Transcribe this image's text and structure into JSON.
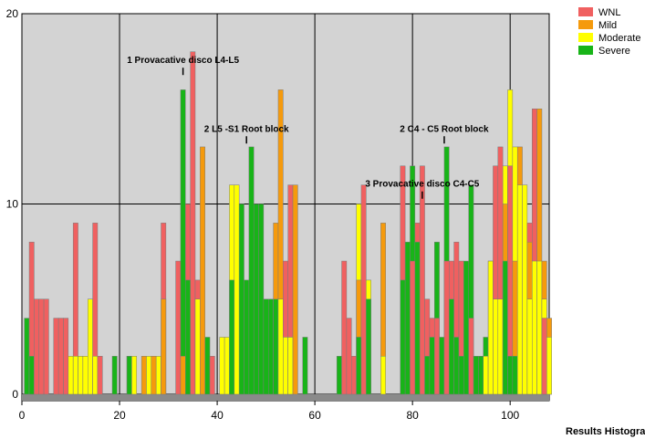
{
  "chart_data": {
    "type": "bar",
    "title": "",
    "xlabel": "",
    "ylabel": "",
    "footer_label": "Results Histogram",
    "xlim": [
      0,
      108
    ],
    "ylim": [
      0,
      20
    ],
    "x_ticks": [
      0,
      20,
      40,
      60,
      80,
      100
    ],
    "y_ticks": [
      0,
      10,
      20
    ],
    "grid": true,
    "legend_position": "top-right",
    "series": [
      {
        "name": "WNL",
        "color": "#f06060",
        "points": [
          [
            2,
            8
          ],
          [
            3,
            5
          ],
          [
            4,
            5
          ],
          [
            5,
            5
          ],
          [
            7,
            4
          ],
          [
            8,
            4
          ],
          [
            9,
            4
          ],
          [
            11,
            9
          ],
          [
            12,
            2
          ],
          [
            13,
            2
          ],
          [
            15,
            9
          ],
          [
            16,
            2
          ],
          [
            29,
            9
          ],
          [
            32,
            7
          ],
          [
            34,
            10
          ],
          [
            35,
            18
          ],
          [
            36,
            6
          ],
          [
            39,
            2
          ],
          [
            54,
            7
          ],
          [
            55,
            11
          ],
          [
            66,
            7
          ],
          [
            67,
            4
          ],
          [
            68,
            2
          ],
          [
            69,
            3
          ],
          [
            70,
            11
          ],
          [
            78,
            12
          ],
          [
            80,
            7
          ],
          [
            81,
            9
          ],
          [
            82,
            12
          ],
          [
            83,
            5
          ],
          [
            84,
            4
          ],
          [
            85,
            4
          ],
          [
            87,
            7
          ],
          [
            88,
            7
          ],
          [
            89,
            8
          ],
          [
            90,
            7
          ],
          [
            92,
            4
          ],
          [
            97,
            12
          ],
          [
            98,
            13
          ],
          [
            100,
            12
          ],
          [
            104,
            9
          ],
          [
            105,
            15
          ],
          [
            107,
            4
          ]
        ]
      },
      {
        "name": "Mild",
        "color": "#f59a0c",
        "points": [
          [
            22,
            2
          ],
          [
            25,
            2
          ],
          [
            27,
            2
          ],
          [
            29,
            5
          ],
          [
            33,
            2
          ],
          [
            37,
            13
          ],
          [
            52,
            9
          ],
          [
            53,
            16
          ],
          [
            55,
            3
          ],
          [
            56,
            11
          ],
          [
            69,
            6
          ],
          [
            74,
            9
          ],
          [
            96,
            7
          ],
          [
            99,
            10
          ],
          [
            101,
            7
          ],
          [
            102,
            13
          ],
          [
            104,
            8
          ],
          [
            106,
            15
          ],
          [
            107,
            7
          ],
          [
            108,
            4
          ]
        ]
      },
      {
        "name": "Moderate",
        "color": "#ffff00",
        "points": [
          [
            10,
            2
          ],
          [
            11,
            2
          ],
          [
            12,
            2
          ],
          [
            13,
            2
          ],
          [
            14,
            5
          ],
          [
            15,
            2
          ],
          [
            23,
            2
          ],
          [
            26,
            2
          ],
          [
            28,
            2
          ],
          [
            36,
            5
          ],
          [
            41,
            3
          ],
          [
            42,
            3
          ],
          [
            43,
            11
          ],
          [
            44,
            11
          ],
          [
            52,
            5
          ],
          [
            53,
            5
          ],
          [
            54,
            3
          ],
          [
            55,
            3
          ],
          [
            69,
            10
          ],
          [
            71,
            6
          ],
          [
            74,
            2
          ],
          [
            95,
            2
          ],
          [
            96,
            7
          ],
          [
            97,
            5
          ],
          [
            98,
            5
          ],
          [
            99,
            12
          ],
          [
            100,
            16
          ],
          [
            101,
            13
          ],
          [
            102,
            11
          ],
          [
            103,
            11
          ],
          [
            104,
            5
          ],
          [
            105,
            7
          ],
          [
            106,
            7
          ],
          [
            107,
            5
          ],
          [
            108,
            3
          ]
        ]
      },
      {
        "name": "Severe",
        "color": "#18b418",
        "points": [
          [
            1,
            4
          ],
          [
            2,
            2
          ],
          [
            19,
            2
          ],
          [
            22,
            2
          ],
          [
            33,
            16
          ],
          [
            34,
            6
          ],
          [
            38,
            3
          ],
          [
            43,
            6
          ],
          [
            45,
            10
          ],
          [
            46,
            6
          ],
          [
            47,
            13
          ],
          [
            48,
            10
          ],
          [
            49,
            10
          ],
          [
            50,
            5
          ],
          [
            51,
            5
          ],
          [
            52,
            5
          ],
          [
            58,
            3
          ],
          [
            65,
            2
          ],
          [
            69,
            3
          ],
          [
            71,
            5
          ],
          [
            78,
            6
          ],
          [
            79,
            8
          ],
          [
            80,
            12
          ],
          [
            81,
            8
          ],
          [
            83,
            2
          ],
          [
            84,
            3
          ],
          [
            85,
            8
          ],
          [
            86,
            3
          ],
          [
            87,
            13
          ],
          [
            88,
            5
          ],
          [
            89,
            3
          ],
          [
            90,
            2
          ],
          [
            91,
            7
          ],
          [
            92,
            11
          ],
          [
            93,
            2
          ],
          [
            94,
            2
          ],
          [
            95,
            3
          ],
          [
            99,
            7
          ],
          [
            100,
            2
          ],
          [
            101,
            2
          ]
        ]
      }
    ],
    "annotations": [
      {
        "text": "1 Provacative disco L4-L5",
        "x": 33,
        "y": 17.4,
        "align": "center"
      },
      {
        "text": "2 L5 -S1 Root block",
        "x": 46,
        "y": 13.8,
        "align": "center"
      },
      {
        "text": "3 Provacative disco C4-C5",
        "x": 82,
        "y": 10.9,
        "align": "center"
      },
      {
        "text": "2 C4 - C5 Root block",
        "x": 86.5,
        "y": 13.8,
        "align": "center"
      }
    ]
  }
}
